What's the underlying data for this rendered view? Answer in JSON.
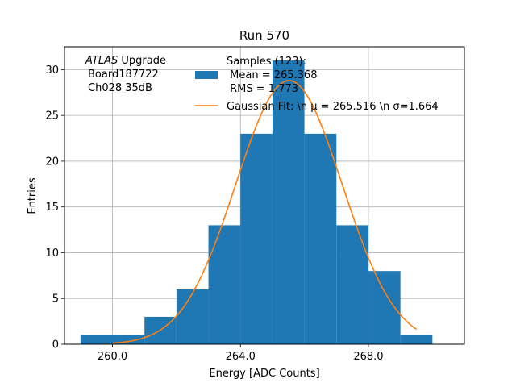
{
  "chart_data": {
    "type": "bar",
    "title": "Run 570",
    "xlabel": "Energy [ADC Counts]",
    "ylabel": "Entries",
    "xlim": [
      258.5,
      271.0
    ],
    "ylim": [
      0,
      32.5
    ],
    "x_ticks": [
      260,
      264,
      268
    ],
    "x_tick_labels": [
      "260.0",
      "264.0",
      "268.0"
    ],
    "y_ticks": [
      0,
      5,
      10,
      15,
      20,
      25,
      30
    ],
    "y_tick_labels": [
      "0",
      "5",
      "10",
      "15",
      "20",
      "25",
      "30"
    ],
    "grid": true,
    "bins": [
      {
        "x0": 259,
        "x1": 260,
        "count": 1
      },
      {
        "x0": 260,
        "x1": 261,
        "count": 1
      },
      {
        "x0": 261,
        "x1": 262,
        "count": 3
      },
      {
        "x0": 262,
        "x1": 263,
        "count": 6
      },
      {
        "x0": 263,
        "x1": 264,
        "count": 13
      },
      {
        "x0": 264,
        "x1": 265,
        "count": 23
      },
      {
        "x0": 265,
        "x1": 266,
        "count": 31
      },
      {
        "x0": 266,
        "x1": 267,
        "count": 23
      },
      {
        "x0": 267,
        "x1": 268,
        "count": 13
      },
      {
        "x0": 268,
        "x1": 269,
        "count": 8
      },
      {
        "x0": 269,
        "x1": 270,
        "count": 1
      }
    ],
    "fit": {
      "amplitude": 28.8,
      "mu": 265.516,
      "sigma": 1.664,
      "x_range": [
        260.0,
        269.5
      ]
    },
    "series": [
      {
        "name_lines": [
          "Samples (123):",
          " Mean = 265.368",
          " RMS = 1.773"
        ],
        "color": "#1f77b4"
      },
      {
        "name": "Gaussian Fit: \\n μ = 265.516 \\n σ=1.664",
        "color": "#ff7f0e"
      }
    ],
    "legend_position": "upper-right",
    "annotation": {
      "italic": "ATLAS",
      "rest": " Upgrade",
      "line2": "Board187722",
      "line3": "Ch028 35dB"
    }
  }
}
